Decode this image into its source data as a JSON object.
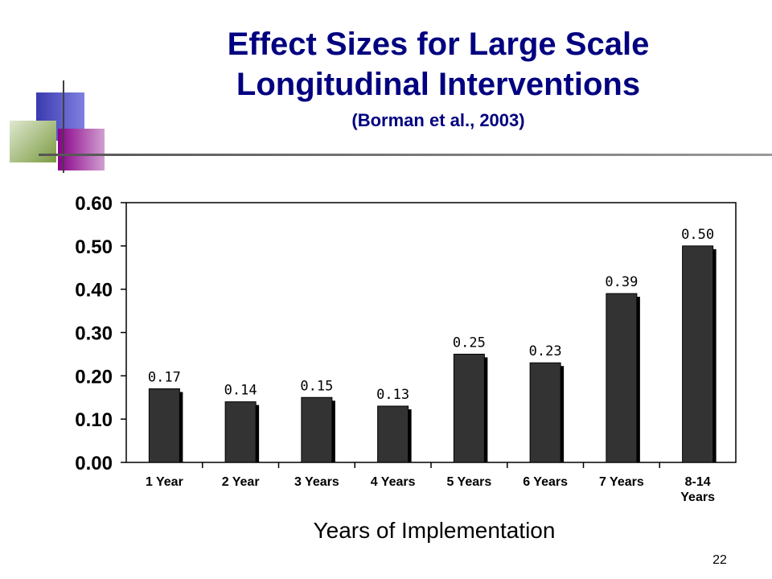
{
  "slide": {
    "title_line1": "Effect Sizes for Large Scale",
    "title_line2": "Longitudinal Interventions",
    "subtitle": "(Borman et al., 2003)",
    "page_number": "22",
    "title_color": "#000080"
  },
  "chart_data": {
    "type": "bar",
    "categories": [
      [
        "1 Year"
      ],
      [
        "2 Year"
      ],
      [
        "3 Years"
      ],
      [
        "4 Years"
      ],
      [
        "5 Years"
      ],
      [
        "6 Years"
      ],
      [
        "7 Years"
      ],
      [
        "8-14",
        "Years"
      ]
    ],
    "values": [
      0.17,
      0.14,
      0.15,
      0.13,
      0.25,
      0.23,
      0.39,
      0.5
    ],
    "data_labels": [
      "0.17",
      "0.14",
      "0.15",
      "0.13",
      "0.25",
      "0.23",
      "0.39",
      "0.50"
    ],
    "yticks": [
      "0.00",
      "0.10",
      "0.20",
      "0.30",
      "0.40",
      "0.50",
      "0.60"
    ],
    "xlabel": "Years of Implementation",
    "ylabel": "",
    "ylim": [
      0,
      0.6
    ],
    "bar_color": "#333333",
    "grid": false,
    "legend": "none"
  }
}
